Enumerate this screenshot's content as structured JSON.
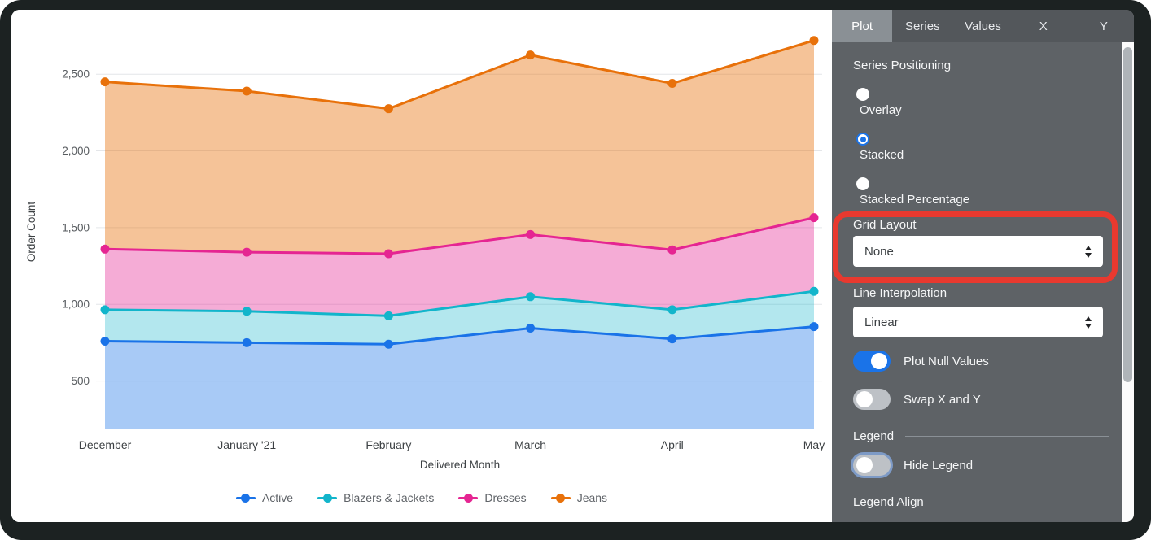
{
  "chart_data": {
    "type": "area",
    "stacked": true,
    "xlabel": "Delivered Month",
    "ylabel": "Order Count",
    "categories": [
      "December",
      "January '21",
      "February",
      "March",
      "April",
      "May"
    ],
    "series": [
      {
        "name": "Active",
        "color": "#1A73E8",
        "fill_opacity": 0.38,
        "values": [
          760,
          750,
          740,
          845,
          775,
          855
        ]
      },
      {
        "name": "Blazers & Jackets",
        "color": "#12B5CB",
        "fill_opacity": 0.32,
        "values": [
          205,
          205,
          185,
          205,
          190,
          230
        ]
      },
      {
        "name": "Dresses",
        "color": "#E52592",
        "fill_opacity": 0.38,
        "values": [
          395,
          385,
          405,
          405,
          390,
          480
        ]
      },
      {
        "name": "Jeans",
        "color": "#E8710A",
        "fill_opacity": 0.42,
        "values": [
          1090,
          1050,
          945,
          1170,
          1085,
          1155
        ]
      }
    ],
    "series_cumulative_totals": [
      {
        "name": "Active",
        "values": [
          760,
          750,
          740,
          845,
          775,
          855
        ]
      },
      {
        "name": "Blazers & Jackets",
        "values": [
          965,
          955,
          925,
          1050,
          965,
          1085
        ]
      },
      {
        "name": "Dresses",
        "values": [
          1360,
          1340,
          1330,
          1455,
          1355,
          1565
        ]
      },
      {
        "name": "Jeans",
        "values": [
          2450,
          2390,
          2275,
          2625,
          2440,
          2720
        ]
      }
    ],
    "yticks": [
      {
        "value": 500,
        "label": "500"
      },
      {
        "value": 1000,
        "label": "1,000"
      },
      {
        "value": 1500,
        "label": "1,500"
      },
      {
        "value": 2000,
        "label": "2,000"
      },
      {
        "value": 2500,
        "label": "2,500"
      }
    ],
    "ylim": [
      185,
      2745
    ],
    "grid": true,
    "legend_position": "bottom"
  },
  "panel": {
    "tabs": [
      {
        "label": "Plot",
        "active": true
      },
      {
        "label": "Series",
        "active": false
      },
      {
        "label": "Values",
        "active": false
      },
      {
        "label": "X",
        "active": false
      },
      {
        "label": "Y",
        "active": false
      }
    ],
    "series_positioning": {
      "label": "Series Positioning",
      "options": [
        {
          "label": "Overlay",
          "selected": false
        },
        {
          "label": "Stacked",
          "selected": true
        },
        {
          "label": "Stacked Percentage",
          "selected": false
        }
      ]
    },
    "grid_layout": {
      "label": "Grid Layout",
      "value": "None"
    },
    "line_interpolation": {
      "label": "Line Interpolation",
      "value": "Linear"
    },
    "toggles": {
      "plot_null_values": {
        "label": "Plot Null Values",
        "on": true
      },
      "swap_x_y": {
        "label": "Swap X and Y",
        "on": false
      },
      "hide_legend": {
        "label": "Hide Legend",
        "on": false,
        "focused": true
      }
    },
    "legend_section": {
      "label": "Legend"
    },
    "legend_align_label": "Legend Align"
  },
  "annotation": {
    "shape": "rounded-rectangle",
    "color": "#E8392F",
    "target": "Grid Layout dropdown"
  },
  "colors": {
    "panel_bg": "#5E6266",
    "tab_bar_bg": "#53575B",
    "active_tab_bg": "#8A9095",
    "accent_blue": "#1A73E8",
    "frame": "#1C2222"
  }
}
